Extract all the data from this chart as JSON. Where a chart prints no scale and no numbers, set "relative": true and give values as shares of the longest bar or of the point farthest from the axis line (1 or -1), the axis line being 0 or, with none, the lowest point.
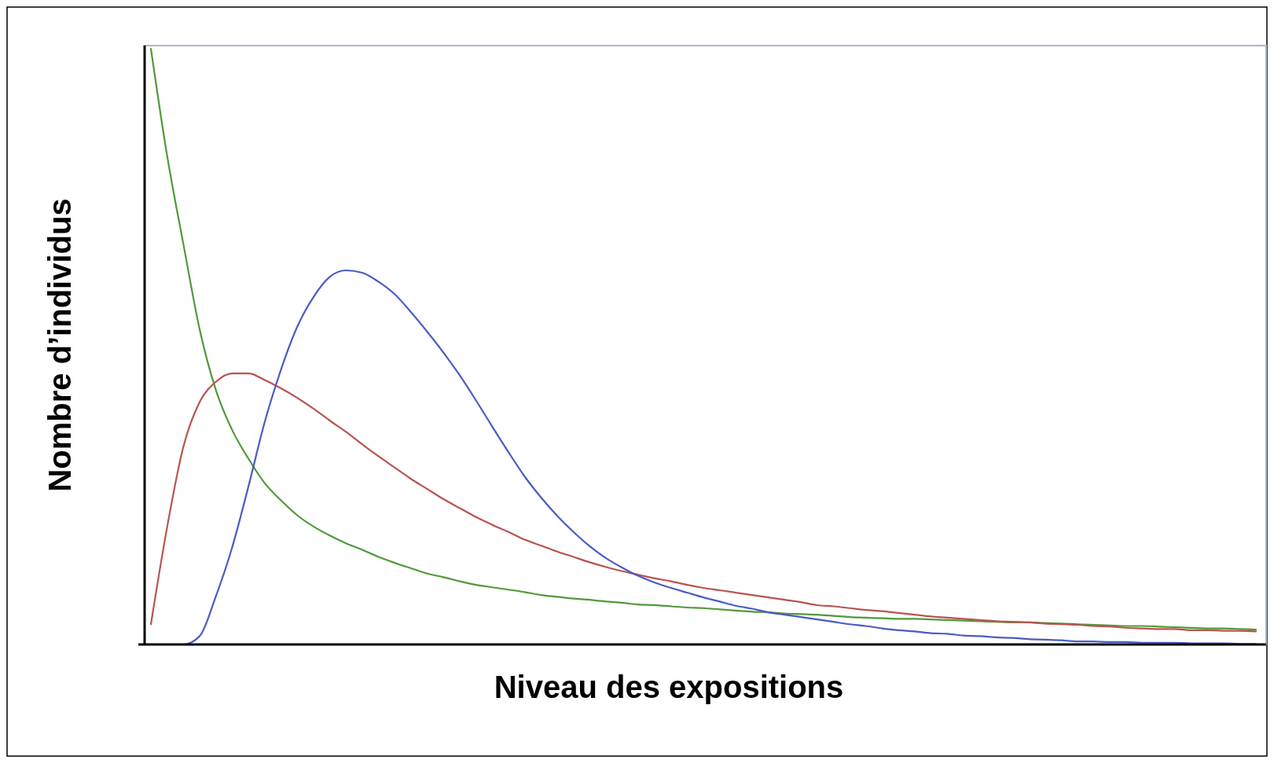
{
  "chart_data": {
    "type": "line",
    "relative": true,
    "xlabel": "Niveau des expositions",
    "ylabel": "Nombre d’individus",
    "categories": [
      null,
      null,
      null,
      null,
      null,
      null,
      null,
      null,
      null,
      null,
      null,
      null,
      null,
      null,
      null,
      null,
      null,
      null,
      null,
      null,
      null,
      null,
      null,
      null,
      null,
      null,
      null,
      null,
      null,
      null,
      null,
      null,
      null,
      null,
      null,
      null,
      null,
      null,
      null,
      null,
      null,
      null,
      null,
      null,
      null,
      null,
      null,
      null,
      null,
      null,
      null,
      null,
      null,
      null,
      null,
      null,
      null,
      null,
      null,
      null,
      null,
      null,
      null,
      null,
      null,
      null,
      null,
      null,
      null
    ],
    "series": [
      {
        "color": "#4f9a3a",
        "values": [
          1,
          0.82,
          0.672,
          0.529,
          0.427,
          0.36,
          0.312,
          0.271,
          0.242,
          0.217,
          0.198,
          0.183,
          0.17,
          0.159,
          0.147,
          0.137,
          0.128,
          0.119,
          0.113,
          0.106,
          0.1,
          0.096,
          0.092,
          0.088,
          0.083,
          0.08,
          0.077,
          0.075,
          0.072,
          0.07,
          0.067,
          0.066,
          0.064,
          0.062,
          0.061,
          0.059,
          0.057,
          0.055,
          0.054,
          0.052,
          0.051,
          0.05,
          0.048,
          0.046,
          0.045,
          0.044,
          0.043,
          0.043,
          0.042,
          0.041,
          0.04,
          0.039,
          0.038,
          0.037,
          0.037,
          0.036,
          0.035,
          0.034,
          0.033,
          0.032,
          0.031,
          0.031,
          0.03,
          0.029,
          0.028,
          0.027,
          0.027,
          0.026,
          0.025
        ]
      },
      {
        "color": "#b85450",
        "values": [
          0.034,
          0.197,
          0.332,
          0.407,
          0.441,
          0.455,
          0.455,
          0.444,
          0.43,
          0.414,
          0.396,
          0.376,
          0.357,
          0.336,
          0.316,
          0.297,
          0.278,
          0.261,
          0.244,
          0.229,
          0.214,
          0.201,
          0.189,
          0.176,
          0.166,
          0.156,
          0.147,
          0.138,
          0.13,
          0.123,
          0.117,
          0.111,
          0.106,
          0.1,
          0.095,
          0.091,
          0.087,
          0.083,
          0.079,
          0.075,
          0.071,
          0.066,
          0.064,
          0.061,
          0.058,
          0.056,
          0.053,
          0.05,
          0.047,
          0.045,
          0.043,
          0.041,
          0.039,
          0.038,
          0.037,
          0.035,
          0.034,
          0.033,
          0.031,
          0.03,
          0.028,
          0.027,
          0.026,
          0.026,
          0.024,
          0.024,
          0.023,
          0.023,
          0.022
        ]
      },
      {
        "color": "#4a5cc4",
        "values": [
          0,
          0,
          0,
          0.014,
          0.081,
          0.163,
          0.265,
          0.373,
          0.461,
          0.533,
          0.583,
          0.617,
          0.628,
          0.624,
          0.609,
          0.588,
          0.558,
          0.525,
          0.49,
          0.452,
          0.41,
          0.366,
          0.323,
          0.282,
          0.247,
          0.216,
          0.189,
          0.165,
          0.145,
          0.129,
          0.115,
          0.104,
          0.095,
          0.087,
          0.079,
          0.072,
          0.065,
          0.06,
          0.054,
          0.05,
          0.046,
          0.042,
          0.038,
          0.034,
          0.031,
          0.027,
          0.024,
          0.022,
          0.019,
          0.018,
          0.015,
          0.014,
          0.012,
          0.011,
          0.009,
          0.008,
          0.007,
          0.005,
          0.005,
          0.004,
          0.004,
          0.003,
          0.003,
          0.003,
          0.002,
          0.002,
          0.002,
          0.001,
          0.001
        ]
      }
    ]
  }
}
